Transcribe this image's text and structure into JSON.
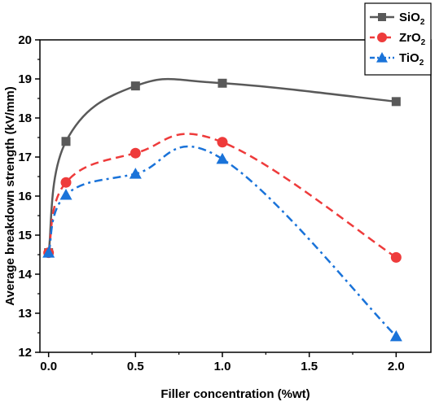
{
  "chart_data": {
    "type": "line",
    "xlabel": "Filler concentration (%wt)",
    "ylabel": "Average breakdown strength (kV/mm)",
    "xlim": [
      -0.05,
      2.2
    ],
    "ylim": [
      12,
      20
    ],
    "xticks": [
      0.0,
      0.5,
      1.0,
      1.5,
      2.0
    ],
    "xtick_labels": [
      "0.0",
      "0.5",
      "1.0",
      "1.5",
      "2.0"
    ],
    "yticks": [
      12,
      13,
      14,
      15,
      16,
      17,
      18,
      19,
      20
    ],
    "ytick_labels": [
      "12",
      "13",
      "14",
      "15",
      "16",
      "17",
      "18",
      "19",
      "20"
    ],
    "grid": false,
    "legend_position": "top-right",
    "series": [
      {
        "name": "SiO2",
        "legend_base": "SiO",
        "legend_sub": "2",
        "color": "#595959",
        "marker": "square",
        "line_style": "solid",
        "x": [
          0,
          0.1,
          0.5,
          1.0,
          2.0
        ],
        "y": [
          14.55,
          17.4,
          18.82,
          18.89,
          18.42
        ]
      },
      {
        "name": "ZrO2",
        "legend_base": "ZrO",
        "legend_sub": "2",
        "color": "#ee3b3b",
        "marker": "circle",
        "line_style": "dashed",
        "x": [
          0,
          0.1,
          0.5,
          1.0,
          2.0
        ],
        "y": [
          14.55,
          16.35,
          17.1,
          17.38,
          14.43
        ]
      },
      {
        "name": "TiO2",
        "legend_base": "TiO",
        "legend_sub": "2",
        "color": "#1a73d9",
        "marker": "triangle",
        "line_style": "dashdot",
        "x": [
          0,
          0.1,
          0.5,
          1.0,
          2.0
        ],
        "y": [
          14.55,
          16.03,
          16.57,
          16.95,
          12.41
        ]
      }
    ]
  }
}
